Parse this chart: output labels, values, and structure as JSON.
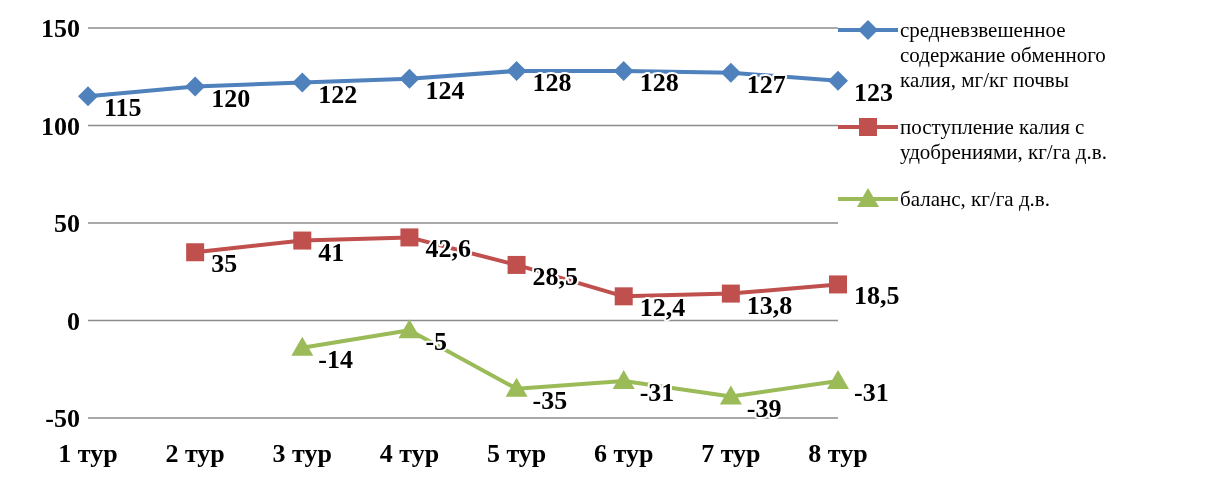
{
  "chart_data": {
    "type": "line",
    "categories": [
      "1 тур",
      "2 тур",
      "3 тур",
      "4 тур",
      "5 тур",
      "6 тур",
      "7 тур",
      "8 тур"
    ],
    "series": [
      {
        "name": "средневзвешенное содержание обменного калия, мг/кг почвы",
        "color": "#4f81bd",
        "marker": "diamond",
        "values": [
          115,
          120,
          122,
          124,
          128,
          128,
          127,
          123
        ],
        "value_labels": [
          "115",
          "120",
          "122",
          "124",
          "128",
          "128",
          "127",
          "123"
        ]
      },
      {
        "name": "поступление калия с удобрениями, кг/га д.в.",
        "color": "#c0504d",
        "marker": "square",
        "values": [
          null,
          35,
          41,
          42.6,
          28.5,
          12.4,
          13.8,
          18.5
        ],
        "value_labels": [
          null,
          "35",
          "41",
          "42,6",
          "28,5",
          "12,4",
          "13,8",
          "18,5"
        ]
      },
      {
        "name": "баланс, кг/га д.в.",
        "color": "#9bbb59",
        "marker": "triangle",
        "values": [
          null,
          null,
          -14,
          -5,
          -35,
          -31,
          -39,
          -31
        ],
        "value_labels": [
          null,
          null,
          "-14",
          "-5",
          "-35",
          "-31",
          "-39",
          "-31"
        ]
      }
    ],
    "ylim": [
      -50,
      150
    ],
    "yticks": [
      -50,
      0,
      50,
      100,
      150
    ],
    "grid": "y",
    "legend": "right"
  }
}
